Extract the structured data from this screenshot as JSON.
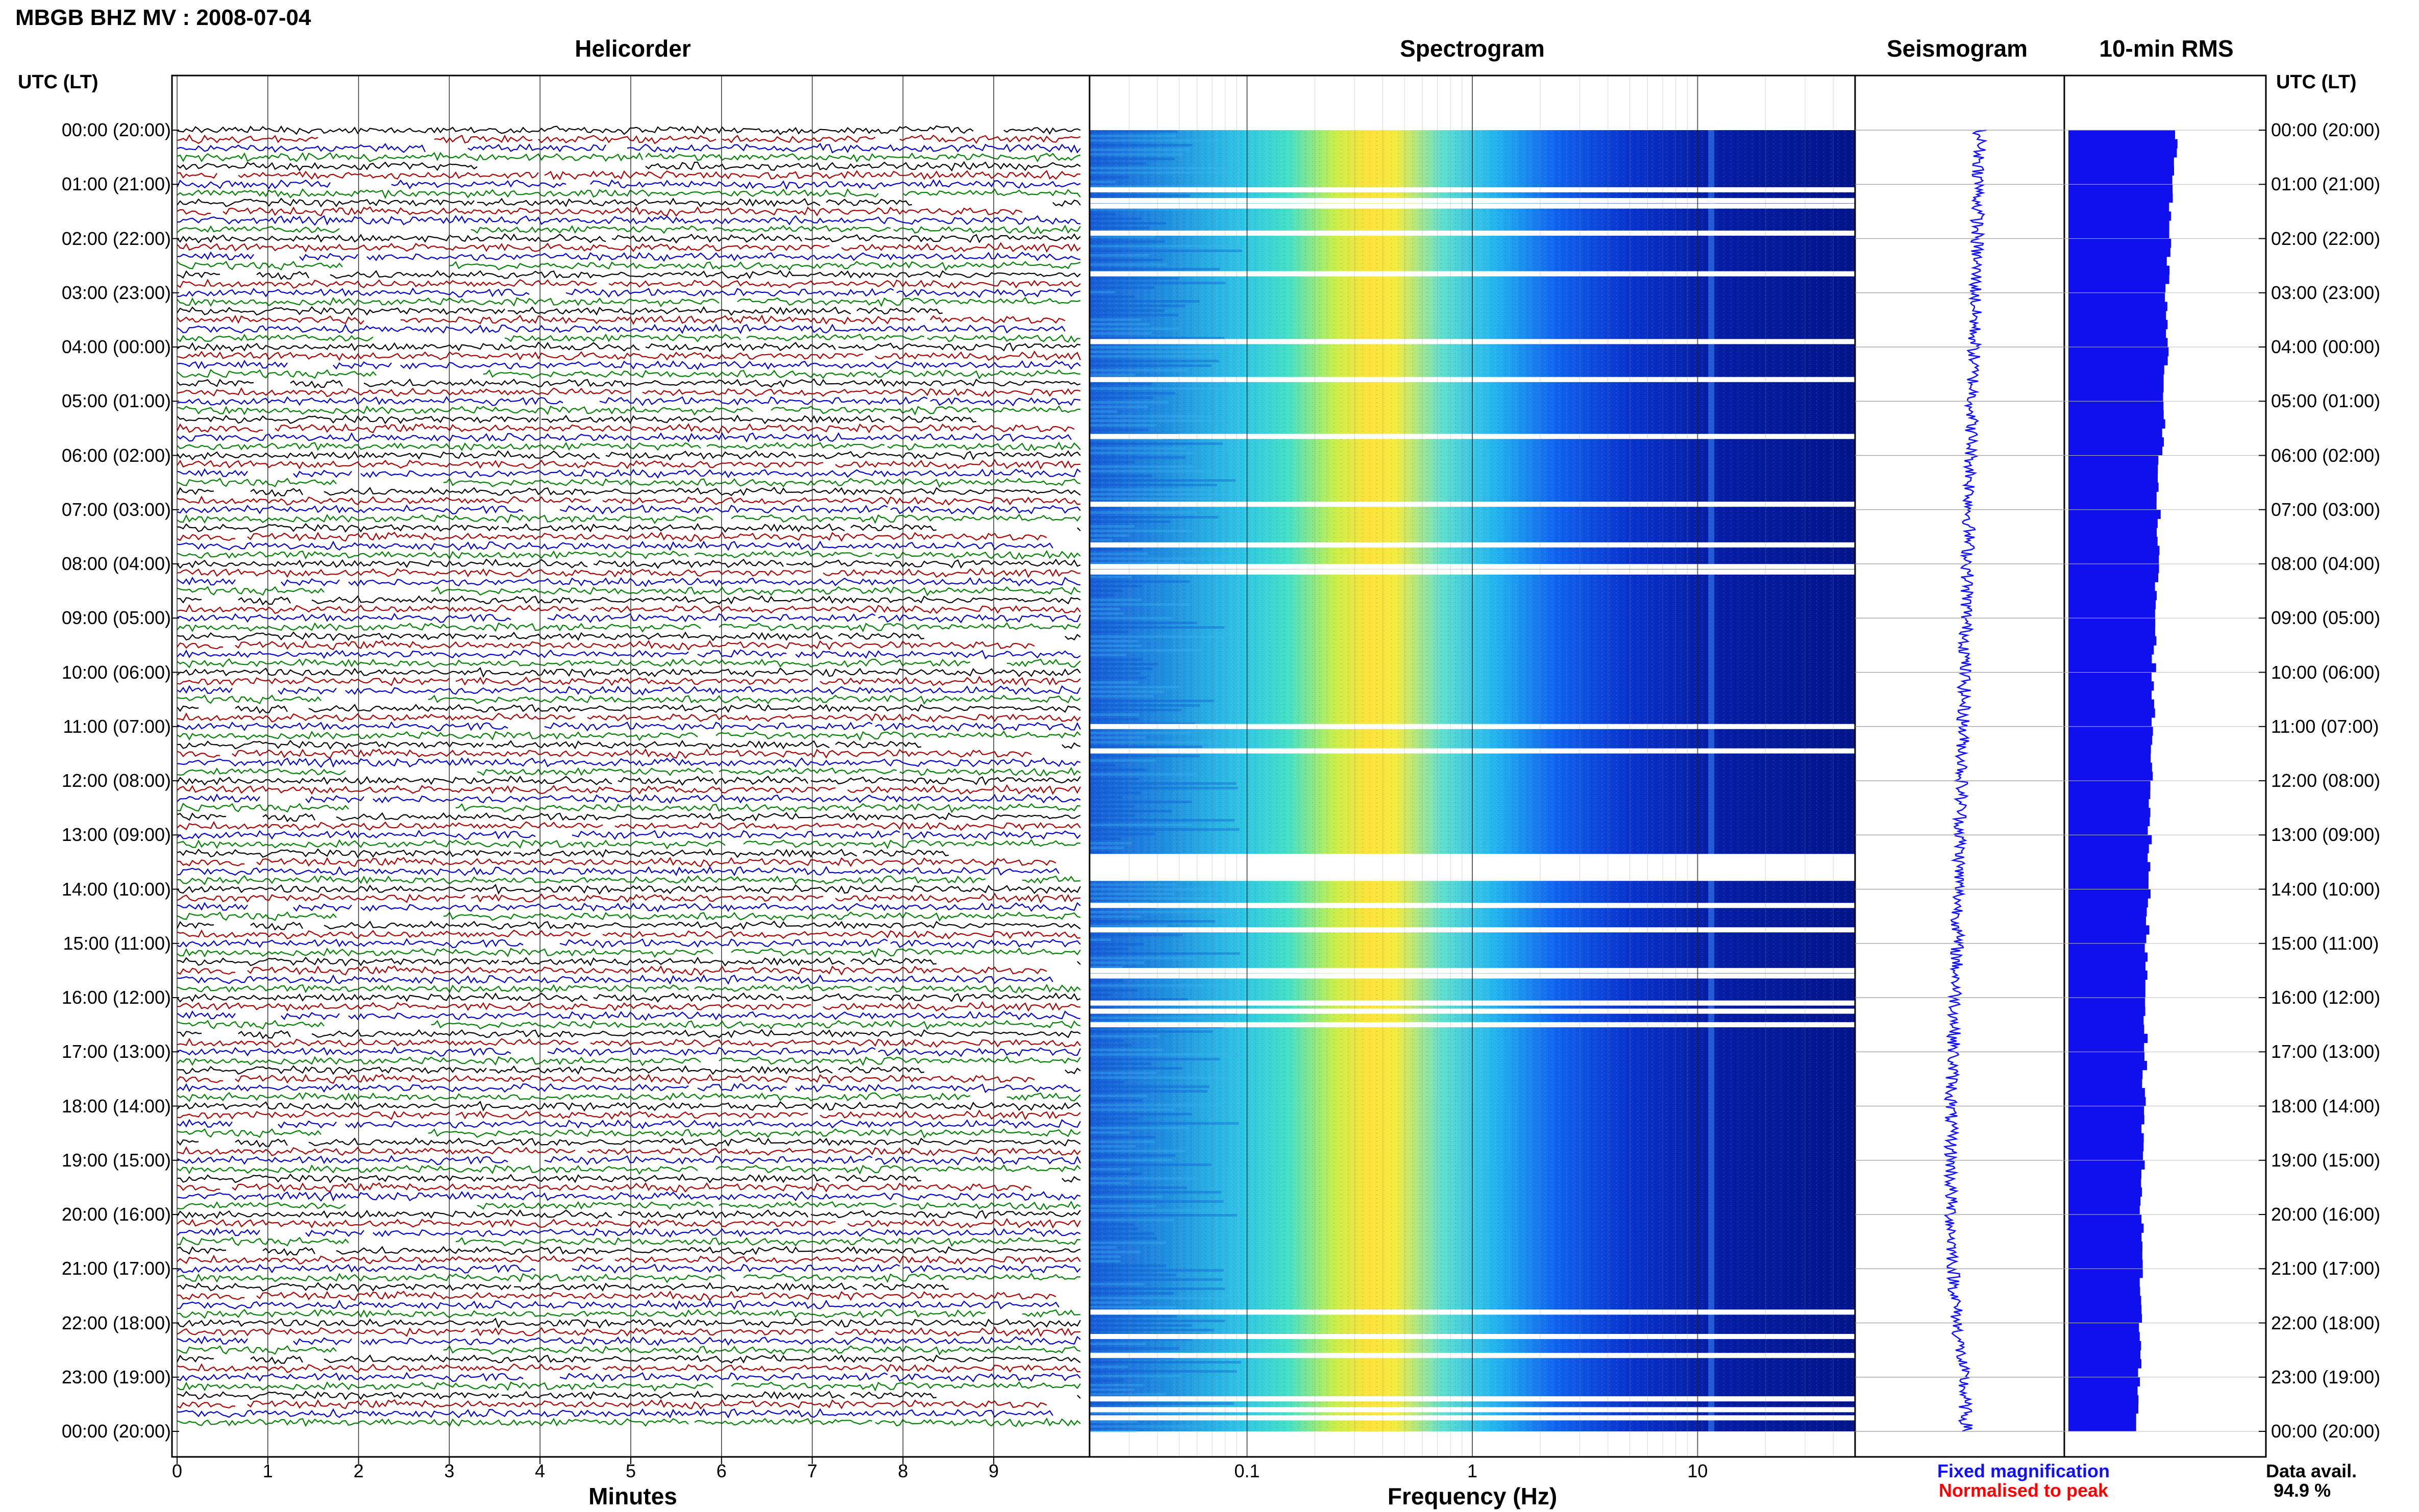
{
  "header": {
    "title": "MBGB BHZ MV : 2008-07-04"
  },
  "panels": {
    "helicorder": "Helicorder",
    "spectrogram": "Spectrogram",
    "seismogram": "Seismogram",
    "rms": "10-min RMS"
  },
  "axis": {
    "utc_lt_left": "UTC (LT)",
    "utc_lt_right": "UTC (LT)",
    "x_helicorder": "Minutes",
    "x_spectrogram": "Frequency (Hz)"
  },
  "legend": {
    "fixed": "Fixed magnification",
    "normalised": "Normalised to peak",
    "fixed_color": "#1010ff",
    "normalised_color": "#ff0000"
  },
  "availability": {
    "label": "Data avail.",
    "value": "94.9 %"
  },
  "chart_data": [
    {
      "type": "line",
      "name": "helicorder",
      "title": "Helicorder",
      "xlabel": "Minutes",
      "ylabel": "UTC (LT)",
      "xlim": [
        0,
        10
      ],
      "x_ticks": [
        0,
        1,
        2,
        3,
        4,
        5,
        6,
        7,
        8,
        9
      ],
      "y_ticks": [
        "00:00 (20:00)",
        "01:00 (21:00)",
        "02:00 (22:00)",
        "03:00 (23:00)",
        "04:00 (00:00)",
        "05:00 (01:00)",
        "06:00 (02:00)",
        "07:00 (03:00)",
        "08:00 (04:00)",
        "09:00 (05:00)",
        "10:00 (06:00)",
        "11:00 (07:00)",
        "12:00 (08:00)",
        "13:00 (09:00)",
        "14:00 (10:00)",
        "15:00 (11:00)",
        "16:00 (12:00)",
        "17:00 (13:00)",
        "18:00 (14:00)",
        "19:00 (15:00)",
        "20:00 (16:00)",
        "21:00 (17:00)",
        "22:00 (18:00)",
        "23:00 (19:00)",
        "00:00 (20:00)"
      ],
      "trace_colors": [
        "#000000",
        "#aa0000",
        "#0000cc",
        "#008000"
      ],
      "traces_per_hour": 6
    },
    {
      "type": "heatmap",
      "name": "spectrogram",
      "title": "Spectrogram",
      "xlabel": "Frequency (Hz)",
      "x_scale": "log",
      "xlim": [
        0.02,
        50
      ],
      "x_ticks": [
        0.1,
        1,
        10
      ],
      "x_tick_labels": [
        "0.1",
        "1",
        "10"
      ],
      "peak_frequency_hz": 0.4,
      "colormap": [
        "#00008b",
        "#0000ff",
        "#00bfff",
        "#40e0d0",
        "#ffff00",
        "#ff8c00"
      ],
      "gap_hours": [
        1.1,
        1.3,
        1.4,
        1.9,
        2.65,
        3.9,
        4.6,
        5.65,
        6.9,
        7.65,
        8.05,
        8.15,
        11.0,
        11.45,
        13.4,
        13.65,
        13.8,
        14.3,
        14.75,
        15.5,
        15.6,
        16.1,
        16.25,
        16.5,
        21.8,
        22.25,
        22.6,
        23.4,
        23.6,
        23.75
      ]
    },
    {
      "type": "line",
      "name": "seismogram",
      "title": "Seismogram",
      "offsets": [
        0.3,
        0.28,
        0.26,
        0.24,
        0.22,
        0.2,
        0.18,
        0.16,
        0.14,
        0.12,
        0.1,
        0.08,
        0.06,
        0.04,
        0.02,
        0.0,
        -0.02,
        -0.05,
        -0.08,
        -0.08,
        -0.08,
        -0.05,
        0.0,
        0.08,
        0.12
      ]
    },
    {
      "type": "bar",
      "name": "rms",
      "title": "10-min RMS",
      "orientation": "horizontal",
      "color": "#1010ee",
      "hours": [
        0,
        1,
        2,
        3,
        4,
        5,
        6,
        7,
        8,
        9,
        10,
        11,
        12,
        13,
        14,
        15,
        16,
        17,
        18,
        19,
        20,
        21,
        22,
        23,
        24
      ],
      "values": [
        0.98,
        0.94,
        0.9,
        0.88,
        0.88,
        0.86,
        0.83,
        0.81,
        0.8,
        0.78,
        0.77,
        0.76,
        0.75,
        0.73,
        0.72,
        0.71,
        0.7,
        0.69,
        0.68,
        0.67,
        0.66,
        0.66,
        0.65,
        0.64,
        0.6
      ]
    }
  ]
}
